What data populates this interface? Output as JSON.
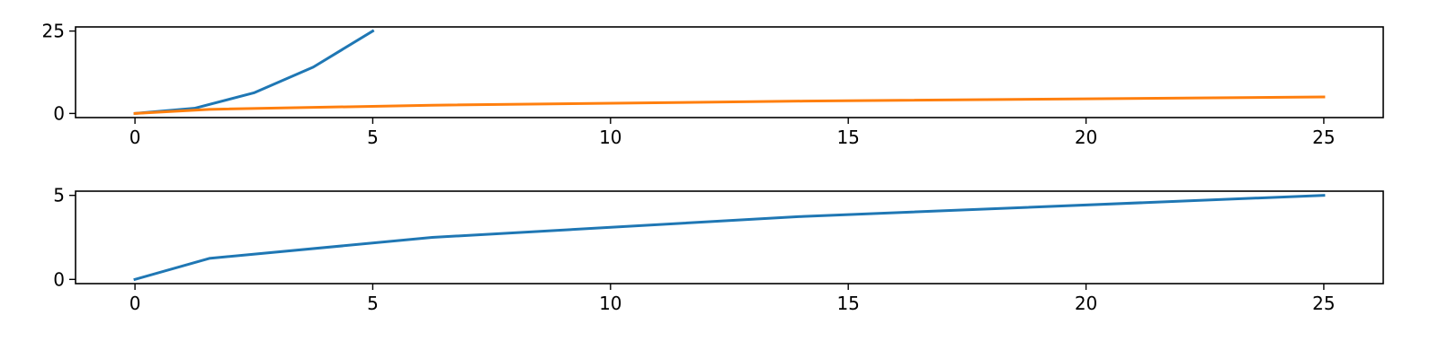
{
  "chart_data": [
    {
      "type": "line",
      "title": "",
      "xlabel": "",
      "ylabel": "",
      "xlim": [
        -1.25,
        26.25
      ],
      "ylim": [
        -1.25,
        26.25
      ],
      "xticks": [
        0,
        5,
        10,
        15,
        20,
        25
      ],
      "yticks": [
        0,
        25
      ],
      "grid": false,
      "legend": "none",
      "series": [
        {
          "color": "#1f77b4",
          "x": [
            0,
            1.25,
            2.5,
            3.75,
            5
          ],
          "y": [
            0,
            1.5625,
            6.25,
            14.0625,
            25
          ]
        },
        {
          "color": "#ff7f0e",
          "x": [
            0,
            1.5625,
            6.25,
            14.0625,
            25
          ],
          "y": [
            0,
            1.25,
            2.5,
            3.75,
            5
          ]
        }
      ]
    },
    {
      "type": "line",
      "title": "",
      "xlabel": "",
      "ylabel": "",
      "xlim": [
        -1.25,
        26.25
      ],
      "ylim": [
        -0.25,
        5.25
      ],
      "xticks": [
        0,
        5,
        10,
        15,
        20,
        25
      ],
      "yticks": [
        0,
        5
      ],
      "grid": false,
      "legend": "none",
      "series": [
        {
          "color": "#1f77b4",
          "x": [
            0,
            1.5625,
            6.25,
            14.0625,
            25
          ],
          "y": [
            0,
            1.25,
            2.5,
            3.75,
            5
          ]
        }
      ]
    }
  ]
}
